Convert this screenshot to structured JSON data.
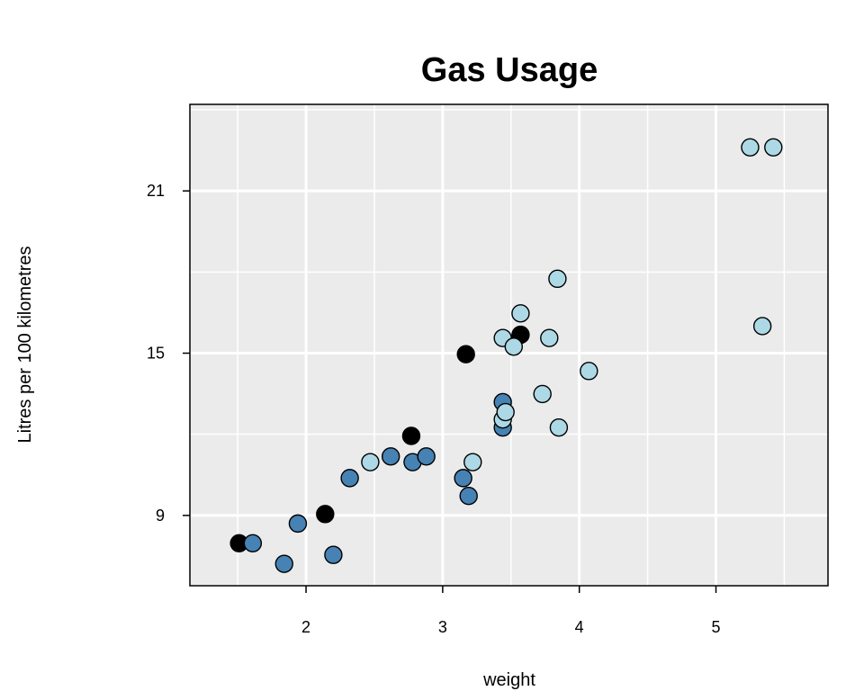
{
  "chart_data": {
    "type": "scatter",
    "title": "Gas Usage",
    "xlabel": "weight",
    "ylabel": "Litres per 100 kilometres",
    "xlim": [
      1.15,
      5.82
    ],
    "ylim": [
      6.4,
      24.2
    ],
    "xticks": [
      2,
      3,
      4,
      5
    ],
    "yticks": [
      9,
      15,
      21
    ],
    "x_minor_grid": [
      1.5,
      2.5,
      3.5,
      4.5,
      5.5
    ],
    "y_minor_grid": [
      6,
      12,
      18,
      24
    ],
    "grid": true,
    "background": "#EBEBEB",
    "series": [
      {
        "color": "#000000",
        "points": [
          {
            "x": 1.51,
            "y": 7.97
          },
          {
            "x": 2.14,
            "y": 9.05
          },
          {
            "x": 2.77,
            "y": 11.94
          },
          {
            "x": 3.17,
            "y": 14.96
          },
          {
            "x": 3.57,
            "y": 15.68
          }
        ]
      },
      {
        "color": "#4682B4",
        "points": [
          {
            "x": 1.61,
            "y": 7.97
          },
          {
            "x": 1.84,
            "y": 7.21
          },
          {
            "x": 1.94,
            "y": 8.7
          },
          {
            "x": 2.2,
            "y": 7.54
          },
          {
            "x": 2.32,
            "y": 10.38
          },
          {
            "x": 2.62,
            "y": 11.18
          },
          {
            "x": 2.78,
            "y": 10.97
          },
          {
            "x": 2.88,
            "y": 11.18
          },
          {
            "x": 3.15,
            "y": 10.38
          },
          {
            "x": 3.19,
            "y": 9.72
          },
          {
            "x": 3.44,
            "y": 12.25
          },
          {
            "x": 3.44,
            "y": 13.19
          }
        ]
      },
      {
        "color": "#ADD8E6",
        "points": [
          {
            "x": 2.47,
            "y": 10.97
          },
          {
            "x": 3.22,
            "y": 10.97
          },
          {
            "x": 3.44,
            "y": 12.55
          },
          {
            "x": 3.46,
            "y": 12.82
          },
          {
            "x": 3.44,
            "y": 15.56
          },
          {
            "x": 3.52,
            "y": 15.24
          },
          {
            "x": 3.57,
            "y": 16.47
          },
          {
            "x": 3.73,
            "y": 13.49
          },
          {
            "x": 3.78,
            "y": 15.56
          },
          {
            "x": 3.84,
            "y": 17.75
          },
          {
            "x": 3.85,
            "y": 12.25
          },
          {
            "x": 4.07,
            "y": 14.34
          },
          {
            "x": 5.25,
            "y": 22.61
          },
          {
            "x": 5.34,
            "y": 16.0
          },
          {
            "x": 5.42,
            "y": 22.61
          }
        ]
      }
    ]
  }
}
